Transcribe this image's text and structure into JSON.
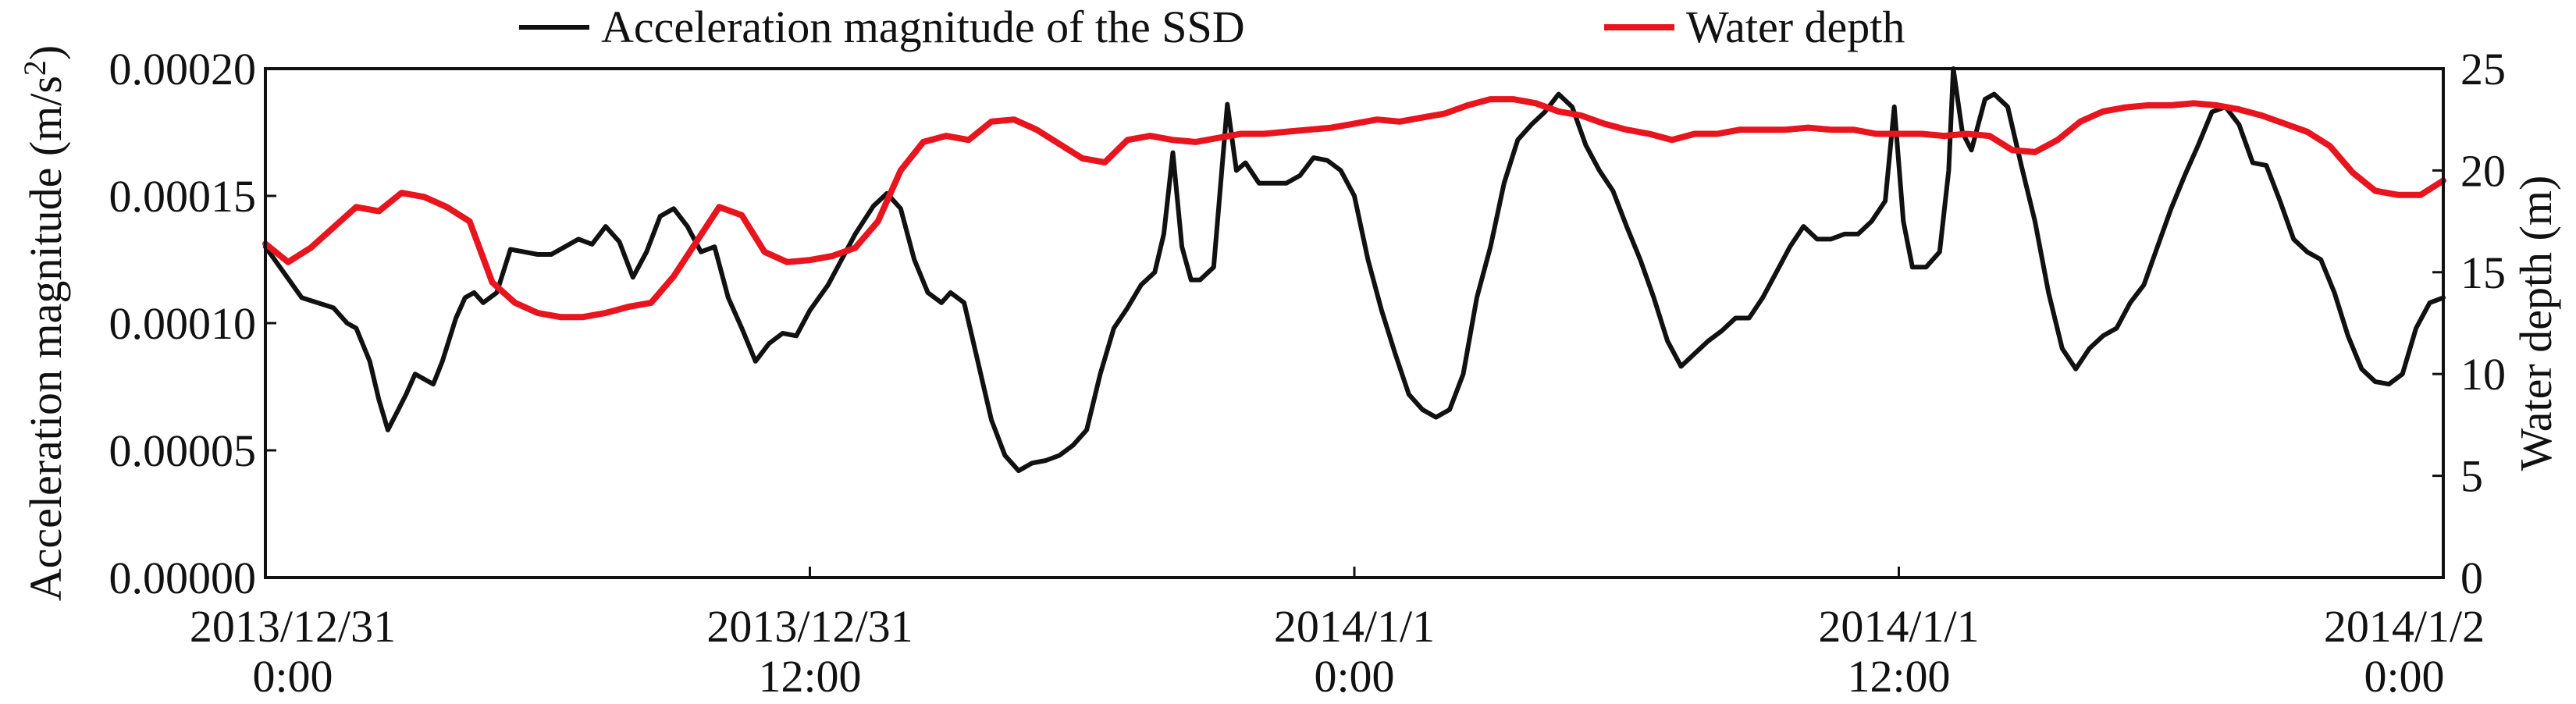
{
  "chart_data": {
    "type": "line",
    "x_range": [
      "2013/12/31 0:00",
      "2014/1/2 0:00"
    ],
    "x_unit": "hours",
    "x_ticks": [
      {
        "hours": 0,
        "line1": "2013/12/31",
        "line2": "0:00"
      },
      {
        "hours": 12,
        "line1": "2013/12/31",
        "line2": "12:00"
      },
      {
        "hours": 24,
        "line1": "2014/1/1",
        "line2": "0:00"
      },
      {
        "hours": 36,
        "line1": "2014/1/1",
        "line2": "12:00"
      },
      {
        "hours": 48,
        "line1": "2014/1/2",
        "line2": "0:00"
      }
    ],
    "y_left": {
      "label": "Acceleration magnitude (m/s²)",
      "label_main": "Acceleration magnitude (m/s",
      "label_sup": "2",
      "label_end": ")",
      "lim": [
        0,
        0.0002
      ],
      "ticks": [
        "0.00000",
        "0.00005",
        "0.00010",
        "0.00015",
        "0.00020"
      ],
      "tick_values": [
        0,
        5e-05,
        0.0001,
        0.00015,
        0.0002
      ]
    },
    "y_right": {
      "label": "Water depth (m)",
      "lim": [
        0,
        25
      ],
      "ticks": [
        "0",
        "5",
        "10",
        "15",
        "20",
        "25"
      ],
      "tick_values": [
        0,
        5,
        10,
        15,
        20,
        25
      ]
    },
    "legend_position": "top",
    "grid": false,
    "series": [
      {
        "name": "Acceleration magnitude of the SSD",
        "axis": "left",
        "color": "#111111",
        "points": [
          [
            0,
            0.00013
          ],
          [
            0.4,
            0.00012
          ],
          [
            0.8,
            0.00011
          ],
          [
            1.5,
            0.000106
          ],
          [
            1.8,
            0.0001
          ],
          [
            2.0,
            9.8e-05
          ],
          [
            2.3,
            8.5e-05
          ],
          [
            2.5,
            7e-05
          ],
          [
            2.7,
            5.8e-05
          ],
          [
            2.9,
            6.5e-05
          ],
          [
            3.1,
            7.2e-05
          ],
          [
            3.3,
            8e-05
          ],
          [
            3.5,
            7.8e-05
          ],
          [
            3.7,
            7.6e-05
          ],
          [
            3.9,
            8.5e-05
          ],
          [
            4.2,
            0.000102
          ],
          [
            4.4,
            0.00011
          ],
          [
            4.6,
            0.000112
          ],
          [
            4.8,
            0.000108
          ],
          [
            5.1,
            0.000112
          ],
          [
            5.4,
            0.000129
          ],
          [
            5.7,
            0.000128
          ],
          [
            6.0,
            0.000127
          ],
          [
            6.3,
            0.000127
          ],
          [
            6.6,
            0.00013
          ],
          [
            6.9,
            0.000133
          ],
          [
            7.2,
            0.000131
          ],
          [
            7.5,
            0.000138
          ],
          [
            7.8,
            0.000132
          ],
          [
            8.1,
            0.000118
          ],
          [
            8.4,
            0.000128
          ],
          [
            8.7,
            0.000142
          ],
          [
            9.0,
            0.000145
          ],
          [
            9.3,
            0.000138
          ],
          [
            9.6,
            0.000128
          ],
          [
            9.9,
            0.00013
          ],
          [
            10.2,
            0.00011
          ],
          [
            10.5,
            9.8e-05
          ],
          [
            10.8,
            8.5e-05
          ],
          [
            11.1,
            9.2e-05
          ],
          [
            11.4,
            9.6e-05
          ],
          [
            11.7,
            9.5e-05
          ],
          [
            12.0,
            0.000105
          ],
          [
            12.4,
            0.000115
          ],
          [
            12.7,
            0.000125
          ],
          [
            13.0,
            0.000135
          ],
          [
            13.4,
            0.000146
          ],
          [
            13.7,
            0.000151
          ],
          [
            14.0,
            0.000145
          ],
          [
            14.3,
            0.000125
          ],
          [
            14.6,
            0.000112
          ],
          [
            14.9,
            0.000108
          ],
          [
            15.1,
            0.000112
          ],
          [
            15.4,
            0.000108
          ],
          [
            15.7,
            8.5e-05
          ],
          [
            16.0,
            6.2e-05
          ],
          [
            16.3,
            4.8e-05
          ],
          [
            16.6,
            4.2e-05
          ],
          [
            16.9,
            4.5e-05
          ],
          [
            17.2,
            4.6e-05
          ],
          [
            17.5,
            4.8e-05
          ],
          [
            17.8,
            5.2e-05
          ],
          [
            18.1,
            5.8e-05
          ],
          [
            18.4,
            8e-05
          ],
          [
            18.7,
            9.8e-05
          ],
          [
            19.0,
            0.000106
          ],
          [
            19.3,
            0.000115
          ],
          [
            19.6,
            0.00012
          ],
          [
            19.8,
            0.000135
          ],
          [
            20.0,
            0.000167
          ],
          [
            20.2,
            0.00013
          ],
          [
            20.4,
            0.000117
          ],
          [
            20.6,
            0.000117
          ],
          [
            20.9,
            0.000122
          ],
          [
            21.2,
            0.000186
          ],
          [
            21.4,
            0.00016
          ],
          [
            21.6,
            0.000163
          ],
          [
            21.9,
            0.000155
          ],
          [
            22.2,
            0.000155
          ],
          [
            22.5,
            0.000155
          ],
          [
            22.8,
            0.000158
          ],
          [
            23.1,
            0.000165
          ],
          [
            23.4,
            0.000164
          ],
          [
            23.7,
            0.00016
          ],
          [
            24.0,
            0.00015
          ],
          [
            24.3,
            0.000125
          ],
          [
            24.6,
            0.000105
          ],
          [
            24.9,
            8.8e-05
          ],
          [
            25.2,
            7.2e-05
          ],
          [
            25.5,
            6.6e-05
          ],
          [
            25.8,
            6.3e-05
          ],
          [
            26.1,
            6.6e-05
          ],
          [
            26.4,
            8e-05
          ],
          [
            26.7,
            0.00011
          ],
          [
            27.0,
            0.00013
          ],
          [
            27.3,
            0.000155
          ],
          [
            27.6,
            0.000172
          ],
          [
            27.9,
            0.000178
          ],
          [
            28.2,
            0.000183
          ],
          [
            28.5,
            0.00019
          ],
          [
            28.8,
            0.000185
          ],
          [
            29.1,
            0.00017
          ],
          [
            29.4,
            0.00016
          ],
          [
            29.7,
            0.000152
          ],
          [
            30.0,
            0.000138
          ],
          [
            30.3,
            0.000125
          ],
          [
            30.6,
            0.00011
          ],
          [
            30.9,
            9.3e-05
          ],
          [
            31.2,
            8.3e-05
          ],
          [
            31.5,
            8.8e-05
          ],
          [
            31.8,
            9.3e-05
          ],
          [
            32.1,
            9.7e-05
          ],
          [
            32.4,
            0.000102
          ],
          [
            32.7,
            0.000102
          ],
          [
            33.0,
            0.00011
          ],
          [
            33.3,
            0.00012
          ],
          [
            33.6,
            0.00013
          ],
          [
            33.9,
            0.000138
          ],
          [
            34.2,
            0.000133
          ],
          [
            34.5,
            0.000133
          ],
          [
            34.8,
            0.000135
          ],
          [
            35.1,
            0.000135
          ],
          [
            35.4,
            0.00014
          ],
          [
            35.7,
            0.000148
          ],
          [
            35.9,
            0.000185
          ],
          [
            36.1,
            0.00014
          ],
          [
            36.3,
            0.000122
          ],
          [
            36.6,
            0.000122
          ],
          [
            36.9,
            0.000128
          ],
          [
            37.1,
            0.00016
          ],
          [
            37.2,
            0.0002
          ],
          [
            37.4,
            0.000175
          ],
          [
            37.6,
            0.000168
          ],
          [
            37.9,
            0.000188
          ],
          [
            38.1,
            0.00019
          ],
          [
            38.4,
            0.000185
          ],
          [
            38.7,
            0.000162
          ],
          [
            39.0,
            0.00014
          ],
          [
            39.3,
            0.000112
          ],
          [
            39.6,
            9e-05
          ],
          [
            39.9,
            8.2e-05
          ],
          [
            40.2,
            9e-05
          ],
          [
            40.5,
            9.5e-05
          ],
          [
            40.8,
            9.8e-05
          ],
          [
            41.1,
            0.000108
          ],
          [
            41.4,
            0.000115
          ],
          [
            41.7,
            0.00013
          ],
          [
            42.0,
            0.000145
          ],
          [
            42.3,
            0.000158
          ],
          [
            42.6,
            0.00017
          ],
          [
            42.9,
            0.000183
          ],
          [
            43.2,
            0.000185
          ],
          [
            43.5,
            0.000178
          ],
          [
            43.8,
            0.000163
          ],
          [
            44.1,
            0.000162
          ],
          [
            44.4,
            0.000148
          ],
          [
            44.7,
            0.000133
          ],
          [
            45.0,
            0.000128
          ],
          [
            45.3,
            0.000125
          ],
          [
            45.6,
            0.000112
          ],
          [
            45.9,
            9.5e-05
          ],
          [
            46.2,
            8.2e-05
          ],
          [
            46.5,
            7.7e-05
          ],
          [
            46.8,
            7.6e-05
          ],
          [
            47.1,
            8e-05
          ],
          [
            47.4,
            9.8e-05
          ],
          [
            47.7,
            0.000108
          ],
          [
            48.0,
            0.00011
          ]
        ]
      },
      {
        "name": "Water depth",
        "axis": "right",
        "color": "#e8141e",
        "points": [
          [
            0,
            16.4
          ],
          [
            0.5,
            15.5
          ],
          [
            1.0,
            16.2
          ],
          [
            1.5,
            17.2
          ],
          [
            2.0,
            18.2
          ],
          [
            2.5,
            18.0
          ],
          [
            3.0,
            18.9
          ],
          [
            3.5,
            18.7
          ],
          [
            4.0,
            18.2
          ],
          [
            4.5,
            17.5
          ],
          [
            5.0,
            14.5
          ],
          [
            5.5,
            13.5
          ],
          [
            6.0,
            13.0
          ],
          [
            6.5,
            12.8
          ],
          [
            7.0,
            12.8
          ],
          [
            7.5,
            13.0
          ],
          [
            8.0,
            13.3
          ],
          [
            8.5,
            13.5
          ],
          [
            9.0,
            14.8
          ],
          [
            9.5,
            16.5
          ],
          [
            10.0,
            18.2
          ],
          [
            10.5,
            17.8
          ],
          [
            11.0,
            16.0
          ],
          [
            11.5,
            15.5
          ],
          [
            12.0,
            15.6
          ],
          [
            12.5,
            15.8
          ],
          [
            13.0,
            16.2
          ],
          [
            13.5,
            17.5
          ],
          [
            14.0,
            20.0
          ],
          [
            14.5,
            21.4
          ],
          [
            15.0,
            21.7
          ],
          [
            15.5,
            21.5
          ],
          [
            16.0,
            22.4
          ],
          [
            16.5,
            22.5
          ],
          [
            17.0,
            22.0
          ],
          [
            17.5,
            21.3
          ],
          [
            18.0,
            20.6
          ],
          [
            18.5,
            20.4
          ],
          [
            19.0,
            21.5
          ],
          [
            19.5,
            21.7
          ],
          [
            20.0,
            21.5
          ],
          [
            20.5,
            21.4
          ],
          [
            21.0,
            21.6
          ],
          [
            21.5,
            21.8
          ],
          [
            22.0,
            21.8
          ],
          [
            22.5,
            21.9
          ],
          [
            23.0,
            22.0
          ],
          [
            23.5,
            22.1
          ],
          [
            24.0,
            22.3
          ],
          [
            24.5,
            22.5
          ],
          [
            25.0,
            22.4
          ],
          [
            25.5,
            22.6
          ],
          [
            26.0,
            22.8
          ],
          [
            26.5,
            23.2
          ],
          [
            27.0,
            23.5
          ],
          [
            27.5,
            23.5
          ],
          [
            28.0,
            23.3
          ],
          [
            28.5,
            22.9
          ],
          [
            29.0,
            22.7
          ],
          [
            29.5,
            22.3
          ],
          [
            30.0,
            22.0
          ],
          [
            30.5,
            21.8
          ],
          [
            31.0,
            21.5
          ],
          [
            31.5,
            21.8
          ],
          [
            32.0,
            21.8
          ],
          [
            32.5,
            22.0
          ],
          [
            33.0,
            22.0
          ],
          [
            33.5,
            22.0
          ],
          [
            34.0,
            22.1
          ],
          [
            34.5,
            22.0
          ],
          [
            35.0,
            22.0
          ],
          [
            35.5,
            21.8
          ],
          [
            36.0,
            21.8
          ],
          [
            36.5,
            21.8
          ],
          [
            37.0,
            21.7
          ],
          [
            37.5,
            21.8
          ],
          [
            38.0,
            21.7
          ],
          [
            38.5,
            21.0
          ],
          [
            39.0,
            20.9
          ],
          [
            39.5,
            21.5
          ],
          [
            40.0,
            22.4
          ],
          [
            40.5,
            22.9
          ],
          [
            41.0,
            23.1
          ],
          [
            41.5,
            23.2
          ],
          [
            42.0,
            23.2
          ],
          [
            42.5,
            23.3
          ],
          [
            43.0,
            23.2
          ],
          [
            43.5,
            23.0
          ],
          [
            44.0,
            22.7
          ],
          [
            44.5,
            22.3
          ],
          [
            45.0,
            21.9
          ],
          [
            45.5,
            21.2
          ],
          [
            46.0,
            19.9
          ],
          [
            46.5,
            19.0
          ],
          [
            47.0,
            18.8
          ],
          [
            47.5,
            18.8
          ],
          [
            48.0,
            19.5
          ]
        ]
      }
    ]
  }
}
